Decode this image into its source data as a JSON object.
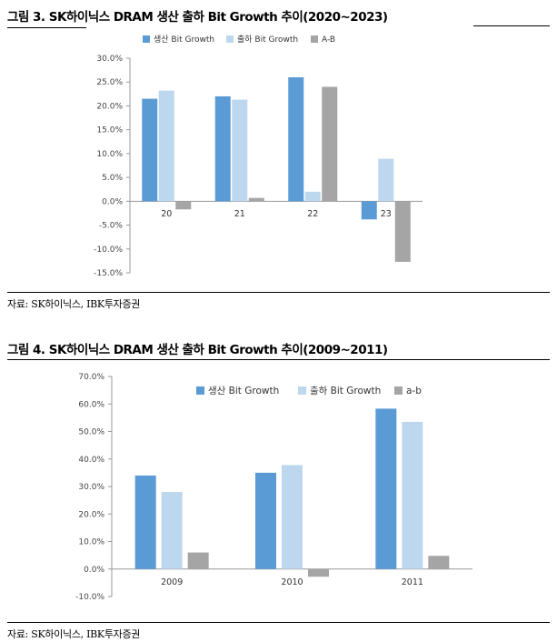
{
  "figures": [
    {
      "title": "그림 3. SK하이닉스 DRAM 생산 출하 Bit Growth 추이(2020~2023)",
      "source": "자료: SK하이닉스, IBK투자증권"
    },
    {
      "title": "그림 4. SK하이닉스 DRAM 생산 출하 Bit Growth 추이(2009~2011)",
      "source": "자료: SK하이닉스, IBK투자증권"
    }
  ],
  "colors": {
    "series1": "#5B9BD5",
    "series2": "#BDD7EE",
    "series3": "#A5A5A5"
  },
  "chart_data": [
    {
      "type": "bar",
      "categories": [
        "20",
        "21",
        "22",
        "23"
      ],
      "series": [
        {
          "name": "생산 Bit Growth",
          "values": [
            21.5,
            22.0,
            26.0,
            -3.8
          ]
        },
        {
          "name": "출하 Bit Growth",
          "values": [
            23.2,
            21.3,
            2.0,
            8.9
          ]
        },
        {
          "name": "A-B",
          "values": [
            -1.7,
            0.7,
            24.0,
            -12.7
          ]
        }
      ],
      "ylim": [
        -15,
        30
      ],
      "ytick_step": 5,
      "yticks": [
        "30.0%",
        "25.0%",
        "20.0%",
        "15.0%",
        "10.0%",
        "5.0%",
        "0.0%",
        "-5.0%",
        "-10.0%",
        "-15.0%"
      ],
      "grid": false,
      "legend_position": "top"
    },
    {
      "type": "bar",
      "categories": [
        "2009",
        "2010",
        "2011"
      ],
      "series": [
        {
          "name": "생산 Bit Growth",
          "values": [
            34.0,
            35.0,
            58.3
          ]
        },
        {
          "name": "출하 Bit Growth",
          "values": [
            28.0,
            37.8,
            53.5
          ]
        },
        {
          "name": "a-b",
          "values": [
            6.0,
            -2.8,
            4.8
          ]
        }
      ],
      "ylim": [
        -10,
        70
      ],
      "ytick_step": 10,
      "yticks": [
        "70.0%",
        "60.0%",
        "50.0%",
        "40.0%",
        "30.0%",
        "20.0%",
        "10.0%",
        "0.0%",
        "-10.0%"
      ],
      "grid": false,
      "legend_position": "top"
    }
  ]
}
